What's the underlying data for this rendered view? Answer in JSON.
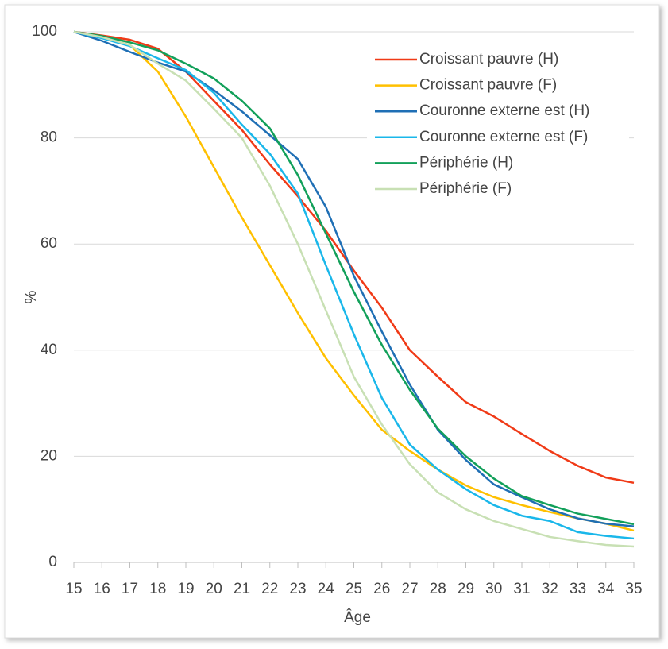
{
  "chart_data": {
    "type": "line",
    "x_label": "Âge",
    "y_label": "%",
    "x": [
      15,
      16,
      17,
      18,
      19,
      20,
      21,
      22,
      23,
      24,
      25,
      26,
      27,
      28,
      29,
      30,
      31,
      32,
      33,
      34,
      35
    ],
    "xlim": [
      15,
      35
    ],
    "xticks": [
      15,
      16,
      17,
      18,
      19,
      20,
      21,
      22,
      23,
      24,
      25,
      26,
      27,
      28,
      29,
      30,
      31,
      32,
      33,
      34,
      35
    ],
    "ylim": [
      0,
      100
    ],
    "yticks": [
      0,
      20,
      40,
      60,
      80,
      100
    ],
    "grid": true,
    "legend": "upper right",
    "series": [
      {
        "name": "Croissant pauvre (H)",
        "color": "#f03a17",
        "values": [
          100,
          99.3,
          98.5,
          96.8,
          92.5,
          87,
          81.5,
          75,
          69,
          62.5,
          55,
          48,
          40,
          35,
          30.2,
          27.5,
          24.2,
          21,
          18.2,
          16,
          15
        ]
      },
      {
        "name": "Croissant pauvre (F)",
        "color": "#ffc000",
        "values": [
          100,
          99,
          97.5,
          92.5,
          84,
          74.5,
          65,
          56,
          47,
          38.5,
          31.5,
          25,
          21,
          17.5,
          14.5,
          12.3,
          10.8,
          9.5,
          8.3,
          7.3,
          6
        ]
      },
      {
        "name": "Couronne externe est (H)",
        "color": "#1f6fb5",
        "values": [
          100,
          98.3,
          96.2,
          94.2,
          92.5,
          89,
          85,
          80.5,
          76,
          67,
          54,
          43.5,
          33.5,
          25,
          19.3,
          14.7,
          12.3,
          10,
          8.3,
          7.3,
          6.8
        ]
      },
      {
        "name": "Couronne externe est (F)",
        "color": "#1ab7ea",
        "values": [
          100,
          98.8,
          97.3,
          95,
          92.8,
          88.5,
          82.5,
          77,
          69.5,
          56,
          43,
          31,
          22.2,
          17.5,
          13.8,
          10.8,
          8.8,
          7.8,
          5.7,
          5,
          4.5
        ]
      },
      {
        "name": "Périphérie (H)",
        "color": "#12a05a",
        "values": [
          100,
          99.2,
          98,
          96.5,
          94,
          91.2,
          87,
          81.8,
          73,
          62,
          51,
          41,
          32.5,
          25.2,
          20,
          15.8,
          12.5,
          10.8,
          9.2,
          8.2,
          7.2
        ]
      },
      {
        "name": "Périphérie (F)",
        "color": "#c8e0b4",
        "values": [
          100,
          99,
          97.5,
          94,
          90.8,
          85.5,
          80,
          71,
          60,
          47.5,
          35,
          26,
          18.5,
          13.2,
          10,
          7.8,
          6.3,
          4.8,
          4,
          3.3,
          3
        ]
      }
    ]
  }
}
